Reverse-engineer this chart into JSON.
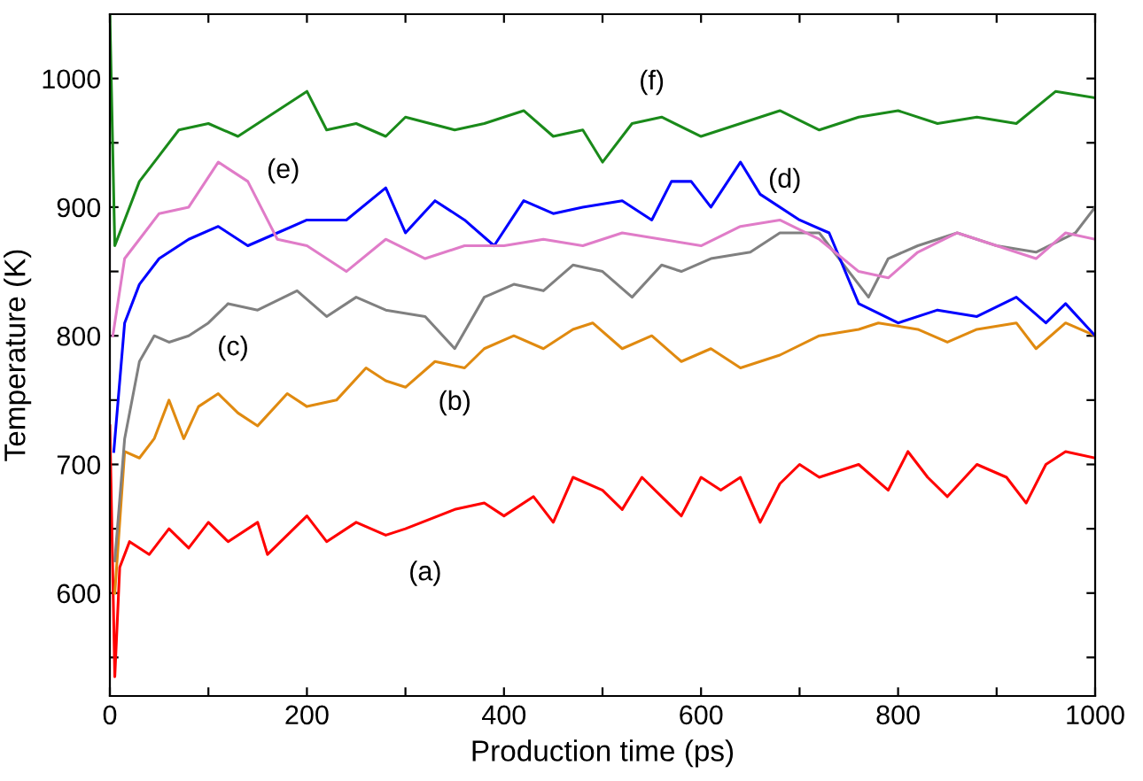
{
  "chart_data": {
    "type": "line",
    "xlabel": "Production time (ps)",
    "ylabel": "Temperature (K)",
    "xlim": [
      0,
      1000
    ],
    "ylim": [
      520,
      1050
    ],
    "xticks": [
      0,
      {
        "value": 100,
        "label": null
      },
      200,
      {
        "value": 300,
        "label": null
      },
      400,
      {
        "value": 500,
        "label": null
      },
      600,
      {
        "value": 700,
        "label": null
      },
      800,
      {
        "value": 900,
        "label": null
      },
      1000
    ],
    "yticks": [
      {
        "value": 550,
        "label": null
      },
      600,
      {
        "value": 650,
        "label": null
      },
      700,
      {
        "value": 750,
        "label": null
      },
      800,
      {
        "value": 850,
        "label": null
      },
      900,
      {
        "value": 950,
        "label": null
      },
      1000
    ],
    "grid": false,
    "legend": false,
    "marker": "none",
    "line_style": "solid",
    "series": [
      {
        "name": "(a)",
        "color": "#ff0000",
        "x": [
          0,
          5,
          10,
          20,
          40,
          60,
          80,
          100,
          120,
          150,
          160,
          200,
          220,
          250,
          280,
          300,
          350,
          380,
          400,
          430,
          450,
          470,
          500,
          520,
          540,
          560,
          580,
          600,
          620,
          640,
          660,
          680,
          700,
          720,
          760,
          790,
          810,
          830,
          850,
          880,
          910,
          930,
          950,
          970,
          1000
        ],
        "values": [
          730,
          535,
          620,
          640,
          630,
          650,
          635,
          655,
          640,
          655,
          630,
          660,
          640,
          655,
          645,
          650,
          665,
          670,
          660,
          675,
          655,
          690,
          680,
          665,
          690,
          675,
          660,
          690,
          680,
          690,
          655,
          685,
          700,
          690,
          700,
          680,
          710,
          690,
          675,
          700,
          690,
          670,
          700,
          710,
          705
        ]
      },
      {
        "name": "(b)",
        "color": "#e08a10",
        "x": [
          5,
          15,
          30,
          45,
          60,
          75,
          90,
          110,
          130,
          150,
          180,
          200,
          230,
          260,
          280,
          300,
          330,
          360,
          380,
          410,
          440,
          470,
          490,
          520,
          550,
          580,
          610,
          640,
          680,
          720,
          760,
          780,
          820,
          850,
          880,
          920,
          940,
          970,
          1000
        ],
        "values": [
          600,
          710,
          705,
          720,
          750,
          720,
          745,
          755,
          740,
          730,
          755,
          745,
          750,
          775,
          765,
          760,
          780,
          775,
          790,
          800,
          790,
          805,
          810,
          790,
          800,
          780,
          790,
          775,
          785,
          800,
          805,
          810,
          805,
          795,
          805,
          810,
          790,
          810,
          800
        ]
      },
      {
        "name": "(c)",
        "color": "#808080",
        "x": [
          5,
          15,
          30,
          45,
          60,
          80,
          100,
          120,
          150,
          190,
          220,
          250,
          280,
          320,
          350,
          380,
          410,
          440,
          470,
          500,
          530,
          560,
          580,
          610,
          650,
          680,
          720,
          750,
          770,
          790,
          820,
          860,
          900,
          940,
          980,
          1000
        ],
        "values": [
          625,
          720,
          780,
          800,
          795,
          800,
          810,
          825,
          820,
          835,
          815,
          830,
          820,
          815,
          790,
          830,
          840,
          835,
          855,
          850,
          830,
          855,
          850,
          860,
          865,
          880,
          880,
          850,
          830,
          860,
          870,
          880,
          870,
          865,
          880,
          900
        ]
      },
      {
        "name": "(d)",
        "color": "#0000ff",
        "x": [
          4,
          15,
          30,
          50,
          80,
          110,
          140,
          170,
          200,
          240,
          280,
          300,
          330,
          360,
          390,
          420,
          450,
          480,
          520,
          550,
          570,
          590,
          610,
          640,
          660,
          700,
          730,
          760,
          800,
          840,
          880,
          920,
          950,
          970,
          1000
        ],
        "values": [
          710,
          810,
          840,
          860,
          875,
          885,
          870,
          880,
          890,
          890,
          915,
          880,
          905,
          890,
          870,
          905,
          895,
          900,
          905,
          890,
          920,
          920,
          900,
          935,
          910,
          890,
          880,
          825,
          810,
          820,
          815,
          830,
          810,
          825,
          800
        ]
      },
      {
        "name": "(e)",
        "color": "#e07cc8",
        "x": [
          3,
          15,
          30,
          50,
          80,
          110,
          140,
          170,
          200,
          240,
          280,
          320,
          360,
          400,
          440,
          480,
          520,
          560,
          600,
          640,
          680,
          720,
          760,
          790,
          820,
          860,
          900,
          940,
          970,
          1000
        ],
        "values": [
          800,
          860,
          875,
          895,
          900,
          935,
          920,
          875,
          870,
          850,
          875,
          860,
          870,
          870,
          875,
          870,
          880,
          875,
          870,
          885,
          890,
          875,
          850,
          845,
          865,
          880,
          870,
          860,
          880,
          875
        ]
      },
      {
        "name": "(f)",
        "color": "#1a8a1a",
        "x": [
          0,
          5,
          15,
          30,
          50,
          70,
          100,
          130,
          160,
          200,
          220,
          250,
          280,
          300,
          350,
          380,
          420,
          450,
          480,
          500,
          530,
          560,
          600,
          640,
          680,
          720,
          760,
          800,
          840,
          880,
          920,
          960,
          1000
        ],
        "values": [
          1050,
          870,
          890,
          920,
          940,
          960,
          965,
          955,
          970,
          990,
          960,
          965,
          955,
          970,
          960,
          965,
          975,
          955,
          960,
          935,
          965,
          970,
          955,
          965,
          975,
          960,
          970,
          975,
          965,
          970,
          965,
          990,
          985
        ]
      }
    ]
  }
}
